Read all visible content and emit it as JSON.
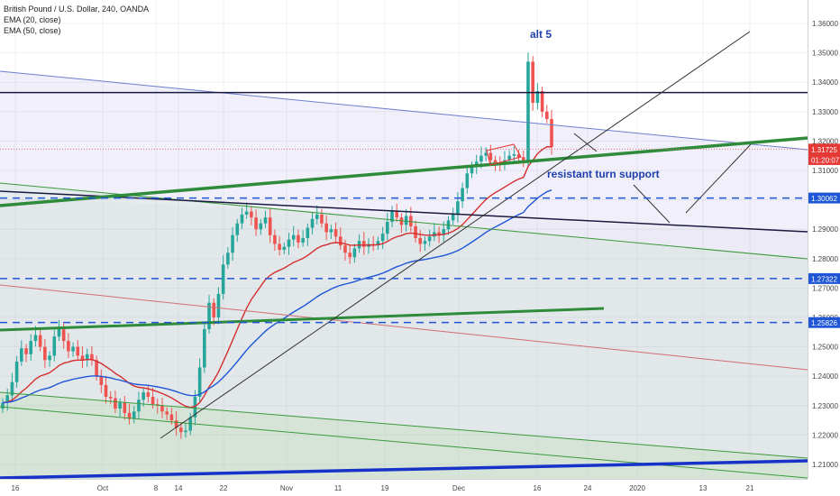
{
  "chart_data": {
    "type": "candlestick",
    "title": "British Pound / U.S. Dollar, 240, OANDA",
    "indicators": [
      {
        "label": "EMA (20, close)",
        "color": "#d32f2f"
      },
      {
        "label": "EMA (50, close)",
        "color": "#1e56d6"
      }
    ],
    "y_ticks": [
      "1.36000",
      "1.35000",
      "1.34000",
      "1.33000",
      "1.32000",
      "1.31000",
      "1.30000",
      "1.29000",
      "1.28000",
      "1.27000",
      "1.26000",
      "1.25000",
      "1.24000",
      "1.23000",
      "1.22000",
      "1.21000"
    ],
    "y_range": [
      1.2055,
      1.3695
    ],
    "x_ticks": [
      "16",
      "Oct",
      "8",
      "14",
      "22",
      "Nov",
      "11",
      "19",
      "Dec",
      "16",
      "24",
      "2020",
      "13",
      "21"
    ],
    "grid": true,
    "price_labels": [
      {
        "value": "1.31725",
        "price": 1.31725,
        "color": "#e53935"
      },
      {
        "value": "01:20:07",
        "price": 1.3137,
        "color": "#e53935"
      },
      {
        "value": "1.30062",
        "price": 1.30062,
        "color": "#1e56d6"
      },
      {
        "value": "1.27322",
        "price": 1.27322,
        "color": "#1e56d6"
      },
      {
        "value": "1.25826",
        "price": 1.25826,
        "color": "#1e56d6"
      }
    ],
    "horizontal_levels": [
      {
        "price": 1.30062,
        "style": "dashed",
        "color": "#1e56d6"
      },
      {
        "price": 1.27322,
        "style": "dashed",
        "color": "#1e56d6"
      },
      {
        "price": 1.25826,
        "style": "dashed",
        "color": "#1e56d6"
      },
      {
        "price": 1.3365,
        "style": "solid",
        "color": "#1a1a40"
      },
      {
        "price": 1.31725,
        "style": "dotted",
        "color": "#e53935"
      }
    ],
    "annotations": [
      {
        "text": "alt 5",
        "color": "#1e3fae"
      },
      {
        "text": "resistant turn support",
        "color": "#1e3fae"
      }
    ],
    "candles_close": [
      1.231,
      1.2335,
      1.238,
      1.245,
      1.2495,
      1.2475,
      1.252,
      1.254,
      1.25,
      1.2455,
      1.247,
      1.2535,
      1.256,
      1.252,
      1.2485,
      1.25,
      1.247,
      1.2455,
      1.2475,
      1.2455,
      1.24,
      1.237,
      1.233,
      1.2325,
      1.229,
      1.231,
      1.2275,
      1.2255,
      1.228,
      1.232,
      1.2345,
      1.233,
      1.2305,
      1.23,
      1.228,
      1.227,
      1.225,
      1.2225,
      1.221,
      1.2215,
      1.226,
      1.233,
      1.243,
      1.256,
      1.265,
      1.26,
      1.268,
      1.278,
      1.282,
      1.288,
      1.292,
      1.295,
      1.296,
      1.294,
      1.29,
      1.292,
      1.294,
      1.288,
      1.285,
      1.283,
      1.284,
      1.2865,
      1.288,
      1.2855,
      1.287,
      1.2905,
      1.2935,
      1.295,
      1.292,
      1.289,
      1.29,
      1.2875,
      1.2845,
      1.282,
      1.2805,
      1.2835,
      1.286,
      1.284,
      1.285,
      1.2845,
      1.286,
      1.2885,
      1.2925,
      1.296,
      1.294,
      1.2915,
      1.2945,
      1.291,
      1.287,
      1.285,
      1.286,
      1.2875,
      1.289,
      1.288,
      1.29,
      1.293,
      1.295,
      1.2995,
      1.304,
      1.309,
      1.3115,
      1.313,
      1.315,
      1.316,
      1.3135,
      1.3125,
      1.312,
      1.3135,
      1.315,
      1.3155,
      1.3145,
      1.313,
      1.347,
      1.333,
      1.337,
      1.33,
      1.3275,
      1.318
    ]
  }
}
